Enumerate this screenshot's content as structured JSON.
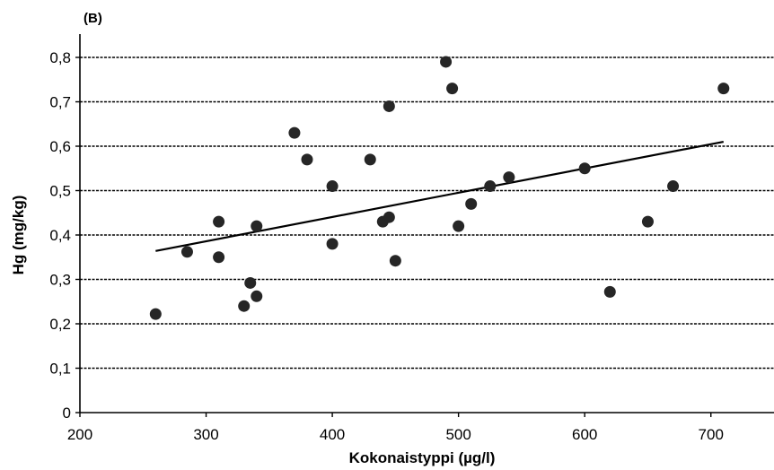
{
  "chart_data": {
    "type": "scatter",
    "panel_label": "(B)",
    "xlabel": "Kokonaistyppi (µg/l)",
    "ylabel": "Hg (mg/kg)",
    "xlim": [
      200,
      750
    ],
    "ylim": [
      0,
      0.8
    ],
    "x_ticks": [
      {
        "value": 200,
        "label": "200"
      },
      {
        "value": 300,
        "label": "300"
      },
      {
        "value": 400,
        "label": "400"
      },
      {
        "value": 500,
        "label": "500"
      },
      {
        "value": 600,
        "label": "600"
      },
      {
        "value": 700,
        "label": "700"
      }
    ],
    "y_ticks": [
      {
        "value": 0,
        "label": "0"
      },
      {
        "value": 0.1,
        "label": "0,1"
      },
      {
        "value": 0.2,
        "label": "0,2"
      },
      {
        "value": 0.3,
        "label": "0,3"
      },
      {
        "value": 0.4,
        "label": "0,4"
      },
      {
        "value": 0.5,
        "label": "0,5"
      },
      {
        "value": 0.6,
        "label": "0,6"
      },
      {
        "value": 0.7,
        "label": "0,7"
      },
      {
        "value": 0.8,
        "label": "0,8"
      }
    ],
    "grid": "horizontal-dashed",
    "points": [
      {
        "x": 260,
        "y": 0.222
      },
      {
        "x": 285,
        "y": 0.362
      },
      {
        "x": 310,
        "y": 0.43
      },
      {
        "x": 310,
        "y": 0.35
      },
      {
        "x": 330,
        "y": 0.24
      },
      {
        "x": 335,
        "y": 0.292
      },
      {
        "x": 340,
        "y": 0.42
      },
      {
        "x": 340,
        "y": 0.262
      },
      {
        "x": 370,
        "y": 0.63
      },
      {
        "x": 380,
        "y": 0.57
      },
      {
        "x": 400,
        "y": 0.51
      },
      {
        "x": 400,
        "y": 0.38
      },
      {
        "x": 430,
        "y": 0.57
      },
      {
        "x": 440,
        "y": 0.43
      },
      {
        "x": 445,
        "y": 0.44
      },
      {
        "x": 445,
        "y": 0.69
      },
      {
        "x": 450,
        "y": 0.342
      },
      {
        "x": 490,
        "y": 0.79
      },
      {
        "x": 495,
        "y": 0.73
      },
      {
        "x": 500,
        "y": 0.42
      },
      {
        "x": 510,
        "y": 0.47
      },
      {
        "x": 525,
        "y": 0.51
      },
      {
        "x": 540,
        "y": 0.53
      },
      {
        "x": 600,
        "y": 0.55
      },
      {
        "x": 620,
        "y": 0.272
      },
      {
        "x": 650,
        "y": 0.43
      },
      {
        "x": 670,
        "y": 0.51
      },
      {
        "x": 710,
        "y": 0.73
      }
    ],
    "trendline": {
      "x1": 260,
      "y1": 0.364,
      "x2": 710,
      "y2": 0.61
    },
    "colors": {
      "points": "#262626",
      "line": "#000000",
      "grid": "#000000"
    }
  }
}
